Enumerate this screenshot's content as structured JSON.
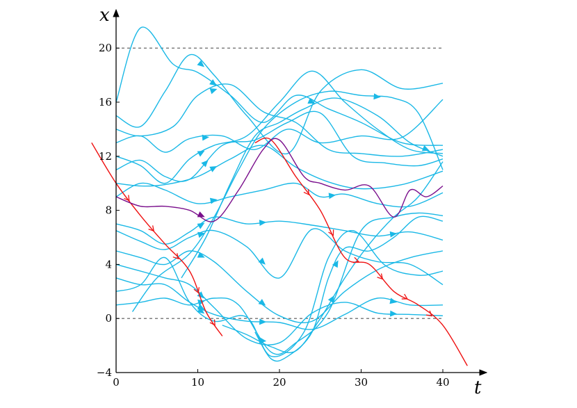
{
  "chart_data": {
    "type": "line",
    "title": "",
    "xlabel": "t",
    "ylabel": "x",
    "xlim": [
      0,
      42
    ],
    "ylim": [
      -4,
      22
    ],
    "x_ticks": [
      "0",
      "10",
      "20",
      "30",
      "40"
    ],
    "y_ticks": [
      "−4",
      "0",
      "4",
      "8",
      "12",
      "16",
      "20"
    ],
    "x_tick_values": [
      0,
      10,
      20,
      30,
      40
    ],
    "y_tick_values": [
      -4,
      0,
      4,
      8,
      12,
      16,
      20
    ],
    "reference_lines": [
      {
        "y": 20,
        "style": "dashed",
        "color": "#555555"
      },
      {
        "y": 0,
        "style": "dashed",
        "color": "#555555"
      }
    ],
    "colors": {
      "blue": "#1ab8e6",
      "red": "#ee1111",
      "purple": "#7a0f8c",
      "axis": "#000000"
    },
    "series": [
      {
        "color": "blue",
        "points": [
          [
            0,
            16
          ],
          [
            3,
            21.5
          ],
          [
            7,
            18.8
          ],
          [
            10,
            18.2
          ],
          [
            14,
            16.5
          ],
          [
            18,
            14.5
          ],
          [
            22,
            16.5
          ],
          [
            26,
            15.5
          ],
          [
            30,
            14.5
          ],
          [
            35,
            13
          ],
          [
            40,
            12.8
          ]
        ],
        "arrows": [
          3,
          6
        ]
      },
      {
        "color": "blue",
        "points": [
          [
            0,
            15
          ],
          [
            3,
            14.2
          ],
          [
            6,
            16.8
          ],
          [
            9,
            19.5
          ],
          [
            12,
            18
          ],
          [
            16,
            15
          ],
          [
            21,
            12.2
          ],
          [
            25,
            16.8
          ],
          [
            30,
            18.4
          ],
          [
            35,
            17
          ],
          [
            40,
            17.4
          ]
        ],
        "arrows": [
          3,
          10
        ]
      },
      {
        "color": "blue",
        "points": [
          [
            0,
            14
          ],
          [
            3,
            13.5
          ],
          [
            7,
            14.2
          ],
          [
            10,
            16.5
          ],
          [
            14,
            17.3
          ],
          [
            18,
            15.3
          ],
          [
            22,
            14.5
          ],
          [
            26,
            12.5
          ],
          [
            30,
            12.2
          ],
          [
            35,
            12
          ],
          [
            40,
            12.5
          ]
        ],
        "arrows": [
          3,
          10
        ]
      },
      {
        "color": "blue",
        "points": [
          [
            0,
            13
          ],
          [
            3,
            13.5
          ],
          [
            6,
            12.3
          ],
          [
            9,
            13.3
          ],
          [
            13,
            13.5
          ],
          [
            17,
            12.5
          ],
          [
            21,
            14
          ],
          [
            25,
            13
          ],
          [
            30,
            13.5
          ],
          [
            35,
            13.4
          ],
          [
            40,
            16.2
          ]
        ],
        "arrows": [
          3,
          10
        ]
      },
      {
        "color": "blue",
        "points": [
          [
            0,
            12
          ],
          [
            3,
            11.3
          ],
          [
            6,
            10
          ],
          [
            9,
            11.8
          ],
          [
            12,
            12.8
          ],
          [
            16,
            13.5
          ],
          [
            20,
            16
          ],
          [
            24,
            18.3
          ],
          [
            28,
            16
          ],
          [
            32,
            14
          ],
          [
            36,
            12.5
          ],
          [
            40,
            12.2
          ]
        ],
        "arrows": [
          3
        ]
      },
      {
        "color": "blue",
        "points": [
          [
            0,
            11
          ],
          [
            3,
            11.7
          ],
          [
            6,
            10.5
          ],
          [
            9,
            10.3
          ],
          [
            13,
            12.8
          ],
          [
            17,
            13.2
          ],
          [
            21,
            14.5
          ],
          [
            25,
            15.2
          ],
          [
            29,
            12
          ],
          [
            33,
            11.5
          ],
          [
            37,
            11.3
          ],
          [
            40,
            11.8
          ]
        ],
        "arrows": [
          3
        ]
      },
      {
        "color": "blue",
        "points": [
          [
            0,
            10
          ],
          [
            3,
            9.8
          ],
          [
            6,
            9.9
          ],
          [
            10,
            10.5
          ],
          [
            14,
            11.8
          ],
          [
            18,
            12.8
          ],
          [
            22,
            11.2
          ],
          [
            26,
            10.1
          ],
          [
            30,
            9.6
          ],
          [
            35,
            9.9
          ],
          [
            40,
            10.9
          ]
        ],
        "arrows": [
          3
        ]
      },
      {
        "color": "blue",
        "points": [
          [
            0,
            9
          ],
          [
            3,
            10
          ],
          [
            6,
            9.5
          ],
          [
            10,
            8.5
          ],
          [
            14,
            9
          ],
          [
            18,
            9.5
          ],
          [
            22,
            10
          ],
          [
            25,
            9
          ],
          [
            28,
            9.2
          ],
          [
            32,
            8.5
          ],
          [
            36,
            8.3
          ],
          [
            40,
            9.3
          ]
        ],
        "arrows": [
          3,
          7
        ]
      },
      {
        "color": "blue",
        "points": [
          [
            0,
            7
          ],
          [
            3,
            6.5
          ],
          [
            6,
            5.5
          ],
          [
            9,
            6.4
          ],
          [
            12,
            7.5
          ],
          [
            16,
            7
          ],
          [
            20,
            7.2
          ],
          [
            24,
            6.9
          ],
          [
            28,
            6.5
          ],
          [
            32,
            6.1
          ],
          [
            36,
            6.4
          ],
          [
            40,
            5.8
          ]
        ],
        "arrows": [
          3,
          5,
          9
        ]
      },
      {
        "color": "blue",
        "points": [
          [
            0,
            6.5
          ],
          [
            3,
            5.7
          ],
          [
            6,
            5.1
          ],
          [
            9,
            6
          ],
          [
            12,
            6.5
          ],
          [
            16,
            5.3
          ],
          [
            20,
            3
          ],
          [
            24,
            6.6
          ],
          [
            28,
            5
          ],
          [
            32,
            4.2
          ],
          [
            36,
            4
          ],
          [
            40,
            2.5
          ]
        ],
        "arrows": [
          3,
          5
        ]
      },
      {
        "color": "blue",
        "points": [
          [
            0,
            5
          ],
          [
            3,
            4.5
          ],
          [
            6,
            4
          ],
          [
            9,
            5
          ],
          [
            12,
            4.2
          ],
          [
            16,
            2
          ],
          [
            20,
            0.2
          ],
          [
            24,
            -0.2
          ],
          [
            28,
            2
          ],
          [
            32,
            3.6
          ],
          [
            36,
            4.5
          ],
          [
            40,
            5
          ]
        ],
        "arrows": [
          3,
          5
        ]
      },
      {
        "color": "blue",
        "points": [
          [
            0,
            4
          ],
          [
            3,
            3.5
          ],
          [
            6,
            3
          ],
          [
            9,
            2.5
          ],
          [
            12,
            0.8
          ],
          [
            16,
            -1.5
          ],
          [
            20,
            -1.8
          ],
          [
            24,
            0.4
          ],
          [
            28,
            1.2
          ],
          [
            32,
            0.4
          ],
          [
            36,
            0.3
          ],
          [
            40,
            0.2
          ]
        ],
        "arrows": [
          3,
          5,
          9
        ]
      },
      {
        "color": "blue",
        "points": [
          [
            0,
            3
          ],
          [
            3,
            2.5
          ],
          [
            6,
            2.5
          ],
          [
            9,
            1.2
          ],
          [
            12,
            0.3
          ],
          [
            16,
            -0.2
          ],
          [
            20,
            -0.3
          ],
          [
            24,
            -0.8
          ],
          [
            28,
            0.3
          ],
          [
            32,
            1.5
          ],
          [
            36,
            1
          ],
          [
            40,
            1
          ]
        ],
        "arrows": [
          3,
          5,
          9
        ]
      },
      {
        "color": "blue",
        "points": [
          [
            0,
            2
          ],
          [
            3,
            2.5
          ],
          [
            6,
            4.5
          ],
          [
            9,
            1.2
          ],
          [
            12,
            -0.2
          ],
          [
            16,
            0.1
          ],
          [
            19,
            -2.8
          ],
          [
            23,
            -1
          ],
          [
            26,
            4.5
          ],
          [
            29,
            6.5
          ],
          [
            33,
            3.9
          ],
          [
            37,
            3.2
          ],
          [
            40,
            3.5
          ]
        ],
        "arrows": [
          3
        ]
      },
      {
        "color": "blue",
        "points": [
          [
            0,
            1
          ],
          [
            3,
            1.2
          ],
          [
            6,
            1.5
          ],
          [
            9,
            1
          ],
          [
            12,
            1.5
          ],
          [
            15,
            1
          ],
          [
            19,
            -2.5
          ],
          [
            22,
            -1.8
          ],
          [
            26,
            0.5
          ],
          [
            30,
            6.5
          ],
          [
            34,
            7.5
          ],
          [
            37,
            7.8
          ],
          [
            40,
            7.6
          ]
        ],
        "arrows": [
          3
        ]
      },
      {
        "color": "blue",
        "points": [
          [
            2,
            0.5
          ],
          [
            5,
            3
          ],
          [
            9,
            4.8
          ],
          [
            12,
            7.5
          ],
          [
            15,
            11
          ],
          [
            18,
            14
          ],
          [
            22,
            16
          ],
          [
            26,
            16.8
          ],
          [
            30,
            16.5
          ],
          [
            34,
            16.3
          ],
          [
            37,
            15.2
          ],
          [
            40,
            11
          ]
        ],
        "arrows": [
          8
        ]
      },
      {
        "color": "blue",
        "points": [
          [
            8,
            3
          ],
          [
            11,
            6
          ],
          [
            14,
            10
          ],
          [
            17,
            13.5
          ],
          [
            20,
            14.5
          ],
          [
            23,
            15.5
          ],
          [
            27,
            16.3
          ],
          [
            32,
            15
          ],
          [
            36,
            13
          ],
          [
            40,
            12
          ]
        ],
        "arrows": [
          8
        ]
      },
      {
        "color": "blue",
        "points": [
          [
            13,
            -0.5
          ],
          [
            16,
            -1.2
          ],
          [
            19,
            -2.1
          ],
          [
            22,
            -2.4
          ],
          [
            25,
            0
          ],
          [
            28,
            3
          ],
          [
            31,
            5.5
          ],
          [
            34,
            7.5
          ],
          [
            37,
            9
          ],
          [
            40,
            11.6
          ]
        ],
        "arrows": [
          4
        ]
      },
      {
        "color": "blue",
        "points": [
          [
            17,
            -1
          ],
          [
            19,
            -3
          ],
          [
            21,
            -2.8
          ],
          [
            24,
            -1
          ],
          [
            26,
            3
          ],
          [
            28,
            5.2
          ],
          [
            31,
            5
          ],
          [
            34,
            6
          ],
          [
            37,
            7.5
          ],
          [
            40,
            7.2
          ]
        ],
        "arrows": [
          4
        ]
      },
      {
        "color": "red",
        "points": [
          [
            -3,
            13
          ],
          [
            0,
            10
          ],
          [
            3,
            7.6
          ],
          [
            6,
            5.5
          ],
          [
            9,
            3.5
          ],
          [
            11,
            0.5
          ],
          [
            13,
            -1.3
          ]
        ],
        "arrows": [
          1,
          2,
          3,
          4,
          5
        ]
      },
      {
        "color": "red",
        "points": [
          [
            17,
            13
          ],
          [
            19,
            13.2
          ],
          [
            22,
            10.5
          ],
          [
            25,
            8
          ],
          [
            28,
            4.5
          ],
          [
            31,
            4
          ],
          [
            34,
            2
          ],
          [
            37,
            1
          ],
          [
            40,
            -0.5
          ],
          [
            43,
            -3.5
          ]
        ],
        "arrows": [
          2,
          3,
          4,
          5,
          6,
          7
        ]
      },
      {
        "color": "purple",
        "points": [
          [
            0,
            9
          ],
          [
            3,
            8.3
          ],
          [
            6,
            8.3
          ],
          [
            9,
            8
          ],
          [
            12,
            7.2
          ],
          [
            15,
            9.5
          ],
          [
            18,
            12.5
          ],
          [
            20,
            13.2
          ],
          [
            23,
            10.5
          ],
          [
            25,
            10
          ],
          [
            28,
            9.5
          ],
          [
            31,
            9.8
          ],
          [
            34,
            7.5
          ],
          [
            36,
            9.5
          ],
          [
            38,
            9
          ],
          [
            40,
            9.8
          ]
        ],
        "arrows": [
          3,
          15
        ]
      }
    ]
  }
}
